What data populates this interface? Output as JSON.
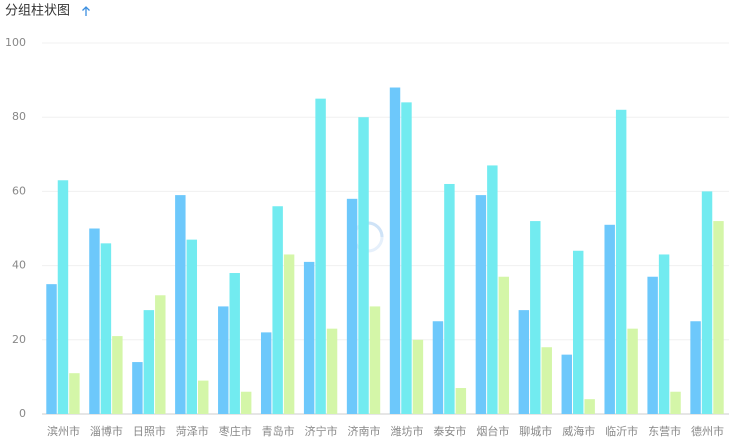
{
  "chart_data": {
    "type": "bar",
    "title": "分组柱状图",
    "categories": [
      "滨州市",
      "淄博市",
      "日照市",
      "菏泽市",
      "枣庄市",
      "青岛市",
      "济宁市",
      "济南市",
      "潍坊市",
      "泰安市",
      "烟台市",
      "聊城市",
      "威海市",
      "临沂市",
      "东营市",
      "德州市"
    ],
    "series": [
      {
        "color": "#6dc8fb",
        "values": [
          35,
          50,
          14,
          59,
          29,
          22,
          41,
          58,
          88,
          25,
          59,
          28,
          16,
          51,
          37,
          25
        ]
      },
      {
        "color": "#72ebf0",
        "values": [
          63,
          46,
          28,
          47,
          38,
          56,
          85,
          80,
          84,
          62,
          67,
          52,
          44,
          82,
          43,
          60
        ]
      },
      {
        "color": "#d4f6a8",
        "values": [
          11,
          21,
          32,
          9,
          6,
          43,
          23,
          29,
          20,
          7,
          37,
          18,
          4,
          23,
          6,
          52
        ]
      }
    ],
    "ylim": [
      0,
      100
    ],
    "yticks": [
      0,
      20,
      40,
      60,
      80,
      100
    ],
    "grid": true
  }
}
